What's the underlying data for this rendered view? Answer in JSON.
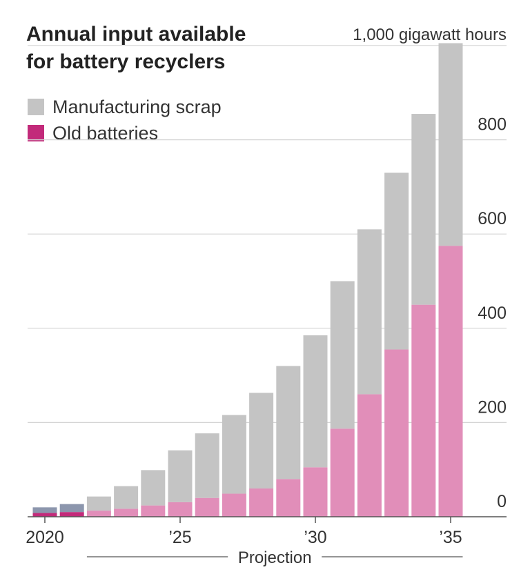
{
  "chart_data": {
    "type": "bar",
    "stacked": true,
    "title_lines": [
      "Annual input available",
      "for battery recyclers"
    ],
    "unit_label": "1,000 gigawatt hours",
    "x": [
      2020,
      2021,
      2022,
      2023,
      2024,
      2025,
      2026,
      2027,
      2028,
      2029,
      2030,
      2031,
      2032,
      2033,
      2034,
      2035
    ],
    "x_tick_labels": [
      {
        "x": 2020,
        "label": "2020"
      },
      {
        "x": 2025,
        "label": "’25"
      },
      {
        "x": 2030,
        "label": "’30"
      },
      {
        "x": 2035,
        "label": "’35"
      }
    ],
    "y_ticks": [
      0,
      200,
      400,
      600,
      800
    ],
    "ylim": [
      0,
      1000
    ],
    "grid": true,
    "legend_position": "top-left",
    "projection_label": "Projection",
    "projection_range": [
      2022,
      2035
    ],
    "series": [
      {
        "name": "Old batteries",
        "color": "#e18eb9",
        "actual_color": "#c22a7a",
        "values": [
          8,
          10,
          13,
          17,
          24,
          31,
          40,
          49,
          60,
          80,
          105,
          187,
          260,
          355,
          450,
          575
        ]
      },
      {
        "name": "Manufacturing scrap",
        "color": "#c4c4c4",
        "actual_color": "#8c96ad",
        "values": [
          12,
          17,
          30,
          48,
          75,
          110,
          137,
          167,
          203,
          240,
          280,
          313,
          350,
          375,
          405,
          430
        ]
      }
    ],
    "legend": [
      {
        "name": "Manufacturing scrap",
        "color": "#c4c4c4"
      },
      {
        "name": "Old batteries",
        "color": "#c22a7a"
      }
    ]
  }
}
